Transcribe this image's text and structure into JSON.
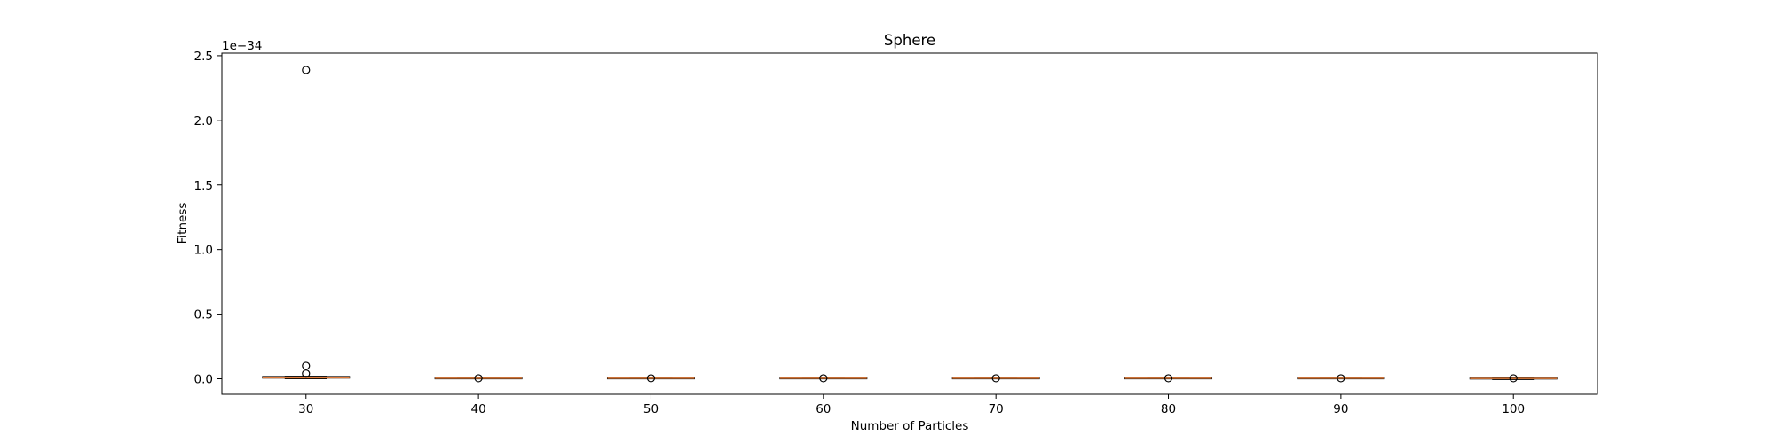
{
  "chart_data": {
    "type": "box",
    "title": "Sphere",
    "xlabel": "Number of Particles",
    "ylabel": "Fitness",
    "y_offset_label": "1e−34",
    "y_scale_exponent": -34,
    "ylim": [
      -0.12,
      2.52
    ],
    "yticks": [
      0.0,
      0.5,
      1.0,
      1.5,
      2.0,
      2.5
    ],
    "ytick_labels": [
      "0.0",
      "0.5",
      "1.0",
      "1.5",
      "2.0",
      "2.5"
    ],
    "categories": [
      "30",
      "40",
      "50",
      "60",
      "70",
      "80",
      "90",
      "100"
    ],
    "boxes": [
      {
        "category": "30",
        "whisker_low": 0.0,
        "q1": 0.005,
        "median": 0.008,
        "q3": 0.018,
        "whisker_high": 0.02,
        "outliers": [
          2.39,
          0.1,
          0.04
        ]
      },
      {
        "category": "40",
        "whisker_low": 0.0,
        "q1": 0.002,
        "median": 0.004,
        "q3": 0.006,
        "whisker_high": 0.008,
        "outliers": [
          0.004
        ]
      },
      {
        "category": "50",
        "whisker_low": 0.0,
        "q1": 0.002,
        "median": 0.004,
        "q3": 0.006,
        "whisker_high": 0.008,
        "outliers": [
          0.004
        ]
      },
      {
        "category": "60",
        "whisker_low": 0.0,
        "q1": 0.002,
        "median": 0.004,
        "q3": 0.006,
        "whisker_high": 0.008,
        "outliers": [
          0.004
        ]
      },
      {
        "category": "70",
        "whisker_low": 0.0,
        "q1": 0.002,
        "median": 0.004,
        "q3": 0.006,
        "whisker_high": 0.008,
        "outliers": [
          0.004
        ]
      },
      {
        "category": "80",
        "whisker_low": 0.0,
        "q1": 0.002,
        "median": 0.004,
        "q3": 0.006,
        "whisker_high": 0.008,
        "outliers": [
          0.004
        ]
      },
      {
        "category": "90",
        "whisker_low": 0.0,
        "q1": 0.002,
        "median": 0.004,
        "q3": 0.006,
        "whisker_high": 0.008,
        "outliers": [
          0.004
        ]
      },
      {
        "category": "100",
        "whisker_low": -0.006,
        "q1": -0.002,
        "median": 0.003,
        "q3": 0.006,
        "whisker_high": 0.008,
        "outliers": [
          0.004
        ]
      }
    ],
    "grid": false,
    "colors": {
      "median": "#e07b39",
      "box": "#000000",
      "axes": "#000000"
    }
  }
}
